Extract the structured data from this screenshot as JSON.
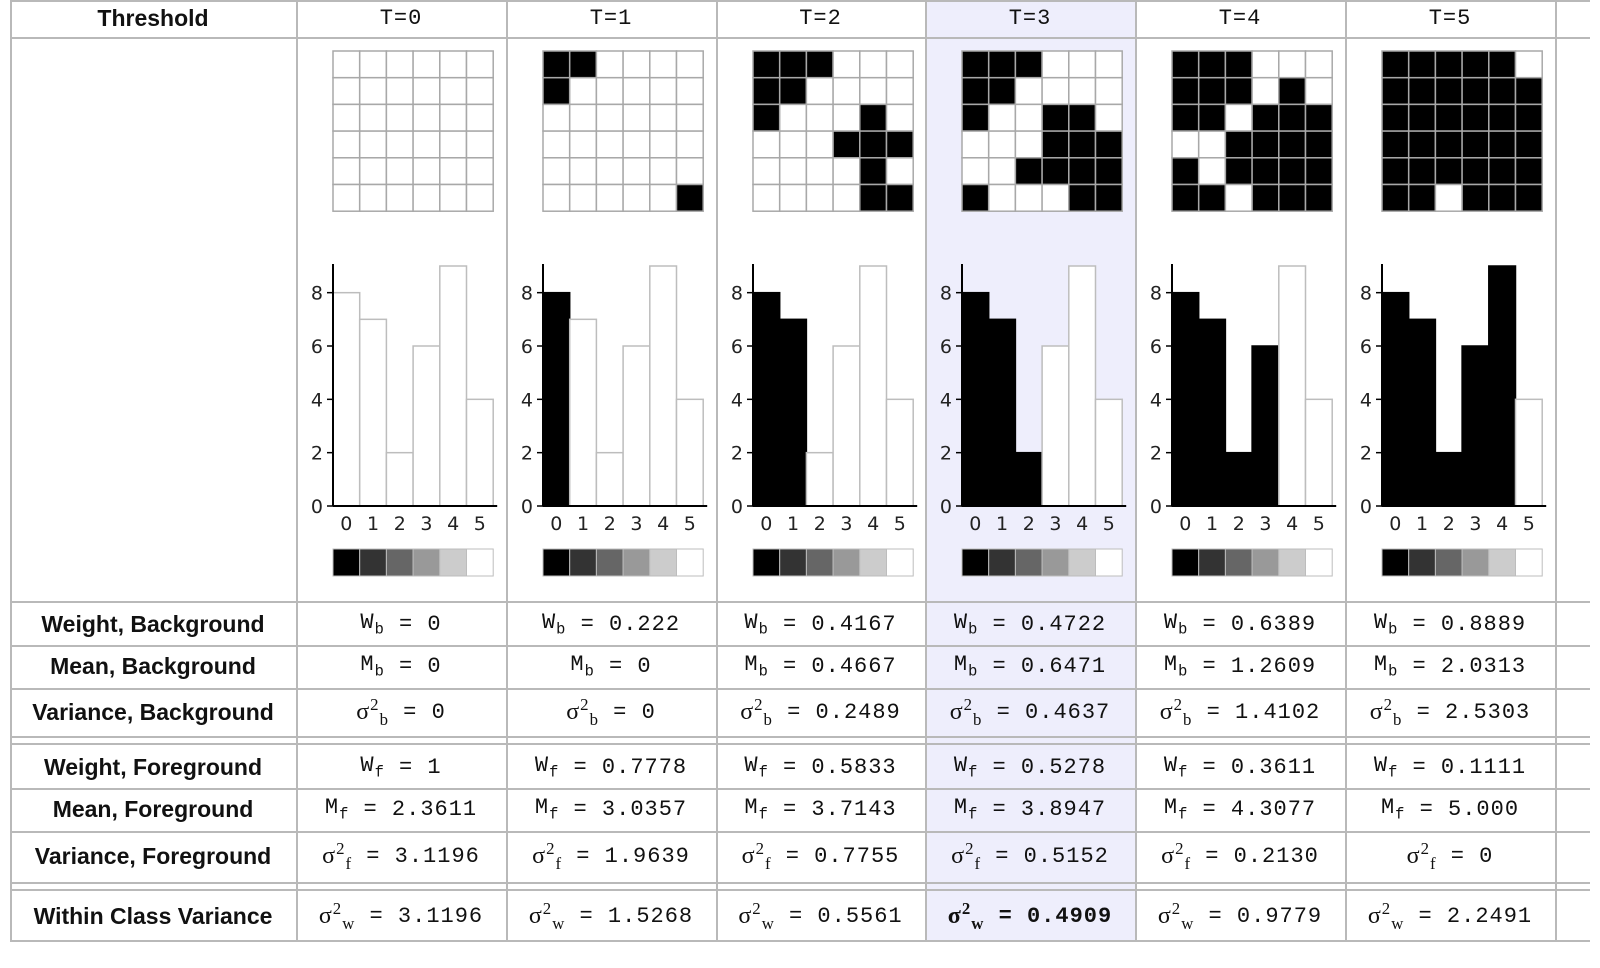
{
  "header_label": "Threshold",
  "highlight_column": 3,
  "row_labels": {
    "wb": "Weight, Background",
    "mb": "Mean, Background",
    "vb": "Variance, Background",
    "wf": "Weight, Foreground",
    "mf": "Mean, Foreground",
    "vf": "Variance, Foreground",
    "wcv": "Within Class Variance"
  },
  "grid_values": [
    [
      0,
      0,
      1,
      4,
      4,
      5
    ],
    [
      0,
      1,
      3,
      4,
      3,
      4
    ],
    [
      1,
      3,
      4,
      2,
      1,
      3
    ],
    [
      4,
      4,
      3,
      1,
      1,
      1
    ],
    [
      3,
      4,
      2,
      2,
      1,
      2
    ],
    [
      2,
      3,
      5,
      3,
      1,
      0
    ]
  ],
  "chart_data": [
    {
      "type": "bar",
      "title": "T=0",
      "categories": [
        "0",
        "1",
        "2",
        "3",
        "4",
        "5"
      ],
      "values": [
        8,
        7,
        2,
        6,
        9,
        4
      ],
      "ylim": [
        0,
        9
      ],
      "y_ticks": [
        "0",
        "2",
        "4",
        "6",
        "8"
      ],
      "threshold": 0
    },
    {
      "type": "bar",
      "title": "T=1",
      "categories": [
        "0",
        "1",
        "2",
        "3",
        "4",
        "5"
      ],
      "values": [
        8,
        7,
        2,
        6,
        9,
        4
      ],
      "ylim": [
        0,
        9
      ],
      "y_ticks": [
        "0",
        "2",
        "4",
        "6",
        "8"
      ],
      "threshold": 1
    },
    {
      "type": "bar",
      "title": "T=2",
      "categories": [
        "0",
        "1",
        "2",
        "3",
        "4",
        "5"
      ],
      "values": [
        8,
        7,
        2,
        6,
        9,
        4
      ],
      "ylim": [
        0,
        9
      ],
      "y_ticks": [
        "0",
        "2",
        "4",
        "6",
        "8"
      ],
      "threshold": 2
    },
    {
      "type": "bar",
      "title": "T=3",
      "categories": [
        "0",
        "1",
        "2",
        "3",
        "4",
        "5"
      ],
      "values": [
        8,
        7,
        2,
        6,
        9,
        4
      ],
      "ylim": [
        0,
        9
      ],
      "y_ticks": [
        "0",
        "2",
        "4",
        "6",
        "8"
      ],
      "threshold": 3
    },
    {
      "type": "bar",
      "title": "T=4",
      "categories": [
        "0",
        "1",
        "2",
        "3",
        "4",
        "5"
      ],
      "values": [
        8,
        7,
        2,
        6,
        9,
        4
      ],
      "ylim": [
        0,
        9
      ],
      "y_ticks": [
        "0",
        "2",
        "4",
        "6",
        "8"
      ],
      "threshold": 4
    },
    {
      "type": "bar",
      "title": "T=5",
      "categories": [
        "0",
        "1",
        "2",
        "3",
        "4",
        "5"
      ],
      "values": [
        8,
        7,
        2,
        6,
        9,
        4
      ],
      "ylim": [
        0,
        9
      ],
      "y_ticks": [
        "0",
        "2",
        "4",
        "6",
        "8"
      ],
      "threshold": 5
    }
  ],
  "gray_levels": [
    "#000000",
    "#333333",
    "#666666",
    "#999999",
    "#cccccc",
    "#ffffff"
  ],
  "colors": {
    "highlight": "#eeeefc",
    "border": "#b9b9b9",
    "cell_line": "#a8a8a8"
  },
  "columns": [
    {
      "header": "T=0",
      "wb": "0",
      "mb": "0",
      "vb": "0",
      "wf": "1",
      "mf": "2.3611",
      "vf": "3.1196",
      "wcv": "3.1196"
    },
    {
      "header": "T=1",
      "wb": "0.222",
      "mb": "0",
      "vb": "0",
      "wf": "0.7778",
      "mf": "3.0357",
      "vf": "1.9639",
      "wcv": "1.5268"
    },
    {
      "header": "T=2",
      "wb": "0.4167",
      "mb": "0.4667",
      "vb": "0.2489",
      "wf": "0.5833",
      "mf": "3.7143",
      "vf": "0.7755",
      "wcv": "0.5561"
    },
    {
      "header": "T=3",
      "wb": "0.4722",
      "mb": "0.6471",
      "vb": "0.4637",
      "wf": "0.5278",
      "mf": "3.8947",
      "vf": "0.5152",
      "wcv": "0.4909"
    },
    {
      "header": "T=4",
      "wb": "0.6389",
      "mb": "1.2609",
      "vb": "1.4102",
      "wf": "0.3611",
      "mf": "4.3077",
      "vf": "0.2130",
      "wcv": "0.9779"
    },
    {
      "header": "T=5",
      "wb": "0.8889",
      "mb": "2.0313",
      "vb": "2.5303",
      "wf": "0.1111",
      "mf": "5.000",
      "vf": "0",
      "wcv": "2.2491"
    }
  ]
}
